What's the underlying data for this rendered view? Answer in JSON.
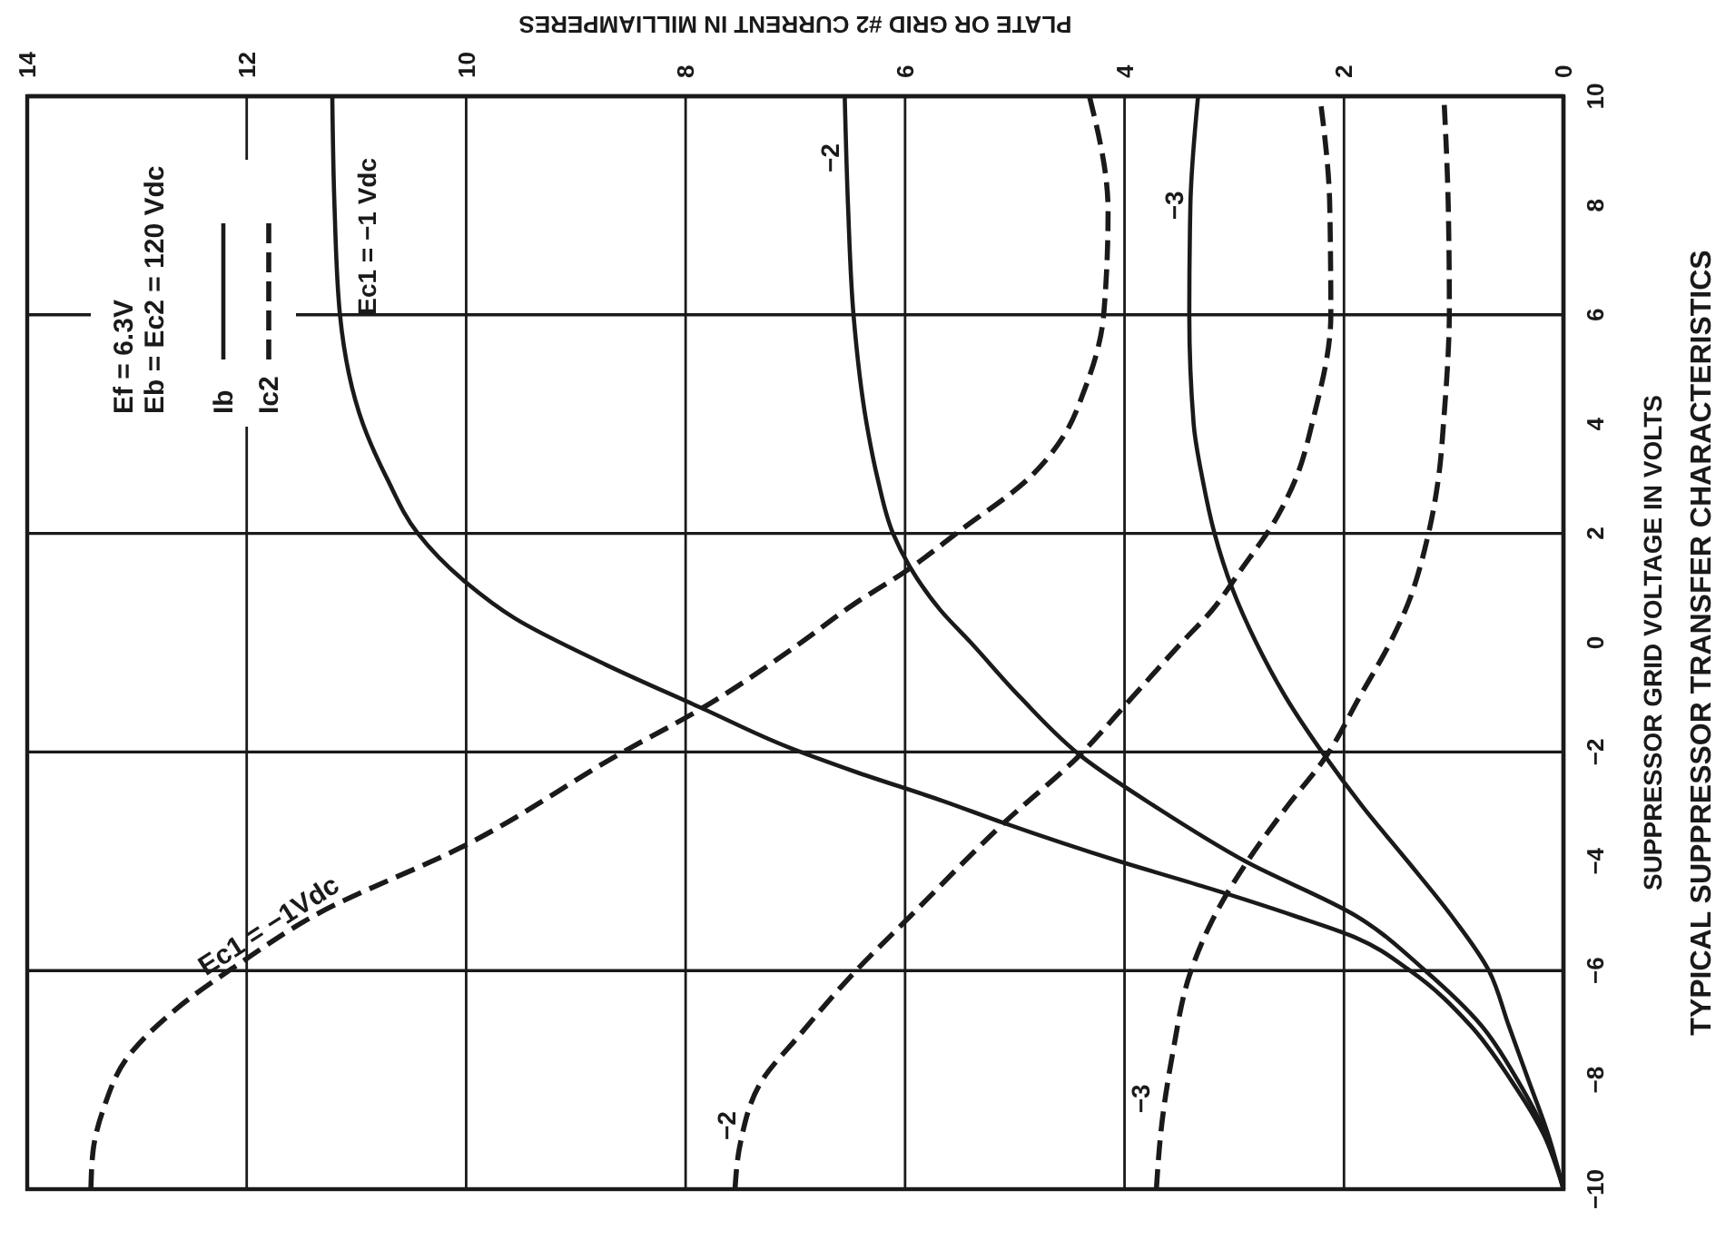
{
  "chart_data": {
    "type": "line",
    "title": "TYPICAL SUPPRESSOR TRANSFER CHARACTERISTICS",
    "xlabel": "PLATE OR GRID #2 CURRENT IN MILLIAMPERES",
    "ylabel": "SUPPRESSOR GRID VOLTAGE IN VOLTS",
    "annotations": [
      "Ef = 6.3V",
      "Eb = Ec2 = 120 Vdc",
      "Ib",
      "Ic2"
    ],
    "xlim": [
      14,
      0
    ],
    "ylim": [
      -10,
      10
    ],
    "xticks": [
      14,
      12,
      10,
      8,
      6,
      4,
      2,
      0
    ],
    "yticks": [
      {
        "value": -10,
        "label": "−10"
      },
      {
        "value": -8,
        "label": "−8"
      },
      {
        "value": -6,
        "label": "−6"
      },
      {
        "value": -4,
        "label": "−4"
      },
      {
        "value": -2,
        "label": "−2"
      },
      0,
      2,
      4,
      6,
      8,
      10
    ],
    "grid": true,
    "series": [
      {
        "name": "Ec1 = −1 Vdc",
        "color": "#1a1a1a",
        "line_style": "solid",
        "x": [
          0,
          0.18,
          0.48,
          0.85,
          1.4,
          1.89,
          2.45,
          3.22,
          4.05,
          5.1,
          5.65,
          6.47,
          7.08,
          7.85,
          8.73,
          9.56,
          10.0,
          10.44,
          10.72,
          10.94,
          11.15,
          11.2,
          11.22
        ],
        "values": [
          -10,
          -9,
          -8,
          -7,
          -6,
          -5.4,
          -5,
          -4.5,
          -4,
          -3.3,
          -2.9,
          -2.35,
          -1.9,
          -1.2,
          -0.4,
          0.45,
          1.1,
          2,
          3,
          4,
          6,
          8,
          10
        ]
      },
      {
        "name": "−2",
        "color": "#1a1a1a",
        "line_style": "solid",
        "x": [
          0,
          0.16,
          0.42,
          0.75,
          1.26,
          1.89,
          2.9,
          3.72,
          4.38,
          4.95,
          5.4,
          5.68,
          5.96,
          6.11,
          6.25,
          6.35,
          6.47,
          6.52,
          6.55
        ],
        "values": [
          -10,
          -9,
          -8,
          -7,
          -6,
          -5,
          -4,
          -3,
          -2.1,
          -1,
          0,
          0.6,
          1.4,
          2,
          3,
          4,
          6,
          8,
          10
        ]
      },
      {
        "name": "−3",
        "color": "#1a1a1a",
        "line_style": "solid",
        "x": [
          0,
          0.14,
          0.32,
          0.5,
          0.68,
          1.02,
          1.42,
          1.83,
          2.2,
          2.53,
          2.8,
          3.02,
          3.18,
          3.29,
          3.37,
          3.41,
          3.4,
          3.33
        ],
        "values": [
          -10,
          -9,
          -8,
          -7,
          -6,
          -5,
          -4,
          -3,
          -2,
          -1,
          0,
          1,
          2,
          3,
          4,
          6,
          8,
          10
        ]
      },
      {
        "name": "Ec1 = −1Vdc",
        "color": "#1a1a1a",
        "line_style": "dashed",
        "x": [
          13.42,
          13.4,
          13.3,
          13.09,
          12.64,
          12.05,
          11.39,
          10.0,
          8.57,
          7.85,
          6.95,
          6.47,
          6.0,
          5.5,
          4.85,
          4.55,
          4.37,
          4.19,
          4.15,
          4.32
        ],
        "values": [
          -10,
          -9.3,
          -8.5,
          -7.6,
          -6.7,
          -5.85,
          -5,
          -3.7,
          -2,
          -1.2,
          0,
          0.7,
          1.3,
          2.05,
          3.05,
          3.8,
          4.6,
          6,
          7.9,
          10
        ]
      },
      {
        "name": "−2",
        "color": "#1a1a1a",
        "line_style": "dashed",
        "x": [
          7.55,
          7.5,
          7.3,
          6.97,
          6.47,
          5.95,
          5.1,
          4.43,
          3.93,
          3.48,
          3.2,
          2.95,
          2.61,
          2.44,
          2.28,
          2.12,
          2.13,
          2.22
        ],
        "values": [
          -10,
          -9.15,
          -8,
          -7.2,
          -6.05,
          -5,
          -3.3,
          -2.1,
          -1,
          0,
          0.6,
          1.3,
          2.3,
          3,
          4.1,
          6,
          8,
          10
        ]
      },
      {
        "name": "−3",
        "color": "#1a1a1a",
        "line_style": "dashed",
        "x": [
          3.71,
          3.66,
          3.56,
          3.41,
          3.18,
          2.88,
          2.52,
          2.17,
          1.86,
          1.58,
          1.45,
          1.23,
          1.14,
          1.09,
          1.04,
          1.05,
          1.09
        ],
        "values": [
          -10,
          -8.8,
          -7.5,
          -6.1,
          -5,
          -4,
          -3,
          -2.1,
          -1,
          0,
          0.55,
          2,
          3,
          4.1,
          6.1,
          8,
          10
        ]
      }
    ]
  }
}
